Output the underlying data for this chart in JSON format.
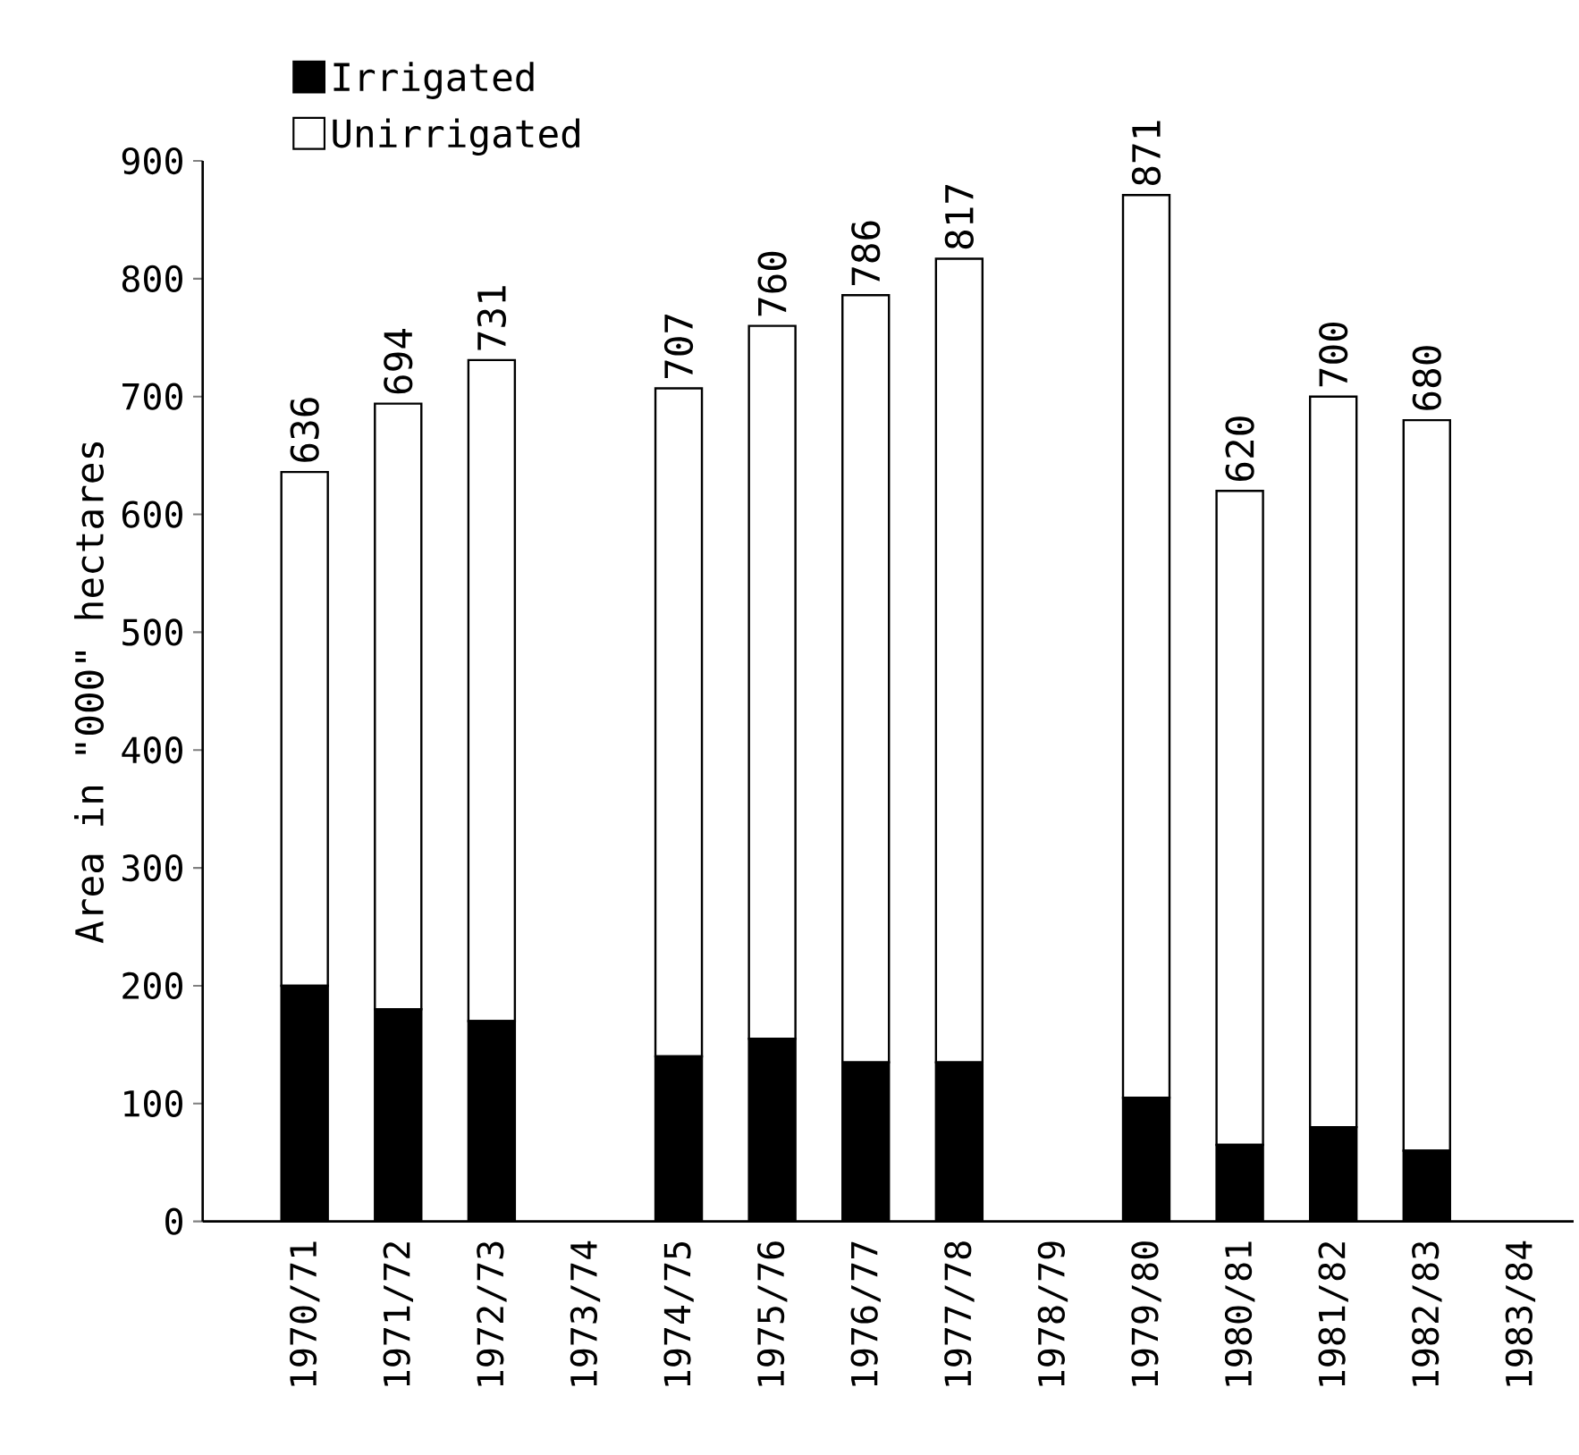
{
  "chart_data": {
    "type": "bar",
    "stacked": true,
    "ylabel": "Area in \"000\" hectares",
    "categories": [
      "1970/71",
      "1971/72",
      "1972/73",
      "1973/74",
      "1974/75",
      "1975/76",
      "1976/77",
      "1977/78",
      "1978/79",
      "1979/80",
      "1980/81",
      "1981/82",
      "1982/83",
      "1983/84"
    ],
    "series": [
      {
        "name": "Irrigated",
        "color": "#000000",
        "values": [
          200,
          180,
          170,
          null,
          140,
          155,
          135,
          135,
          null,
          105,
          65,
          80,
          60,
          null
        ]
      },
      {
        "name": "Unirrigated",
        "color": "#ffffff",
        "values": [
          436,
          514,
          561,
          null,
          567,
          605,
          651,
          682,
          null,
          766,
          555,
          620,
          620,
          null
        ]
      }
    ],
    "totals": [
      "636",
      "694",
      "731",
      null,
      "707",
      "760",
      "786",
      "817",
      null,
      "871",
      "620",
      "700",
      "680",
      null
    ],
    "ylim": [
      0,
      900
    ],
    "yticks": [
      0,
      100,
      200,
      300,
      400,
      500,
      600,
      700,
      800,
      900
    ],
    "legend": "top left"
  }
}
